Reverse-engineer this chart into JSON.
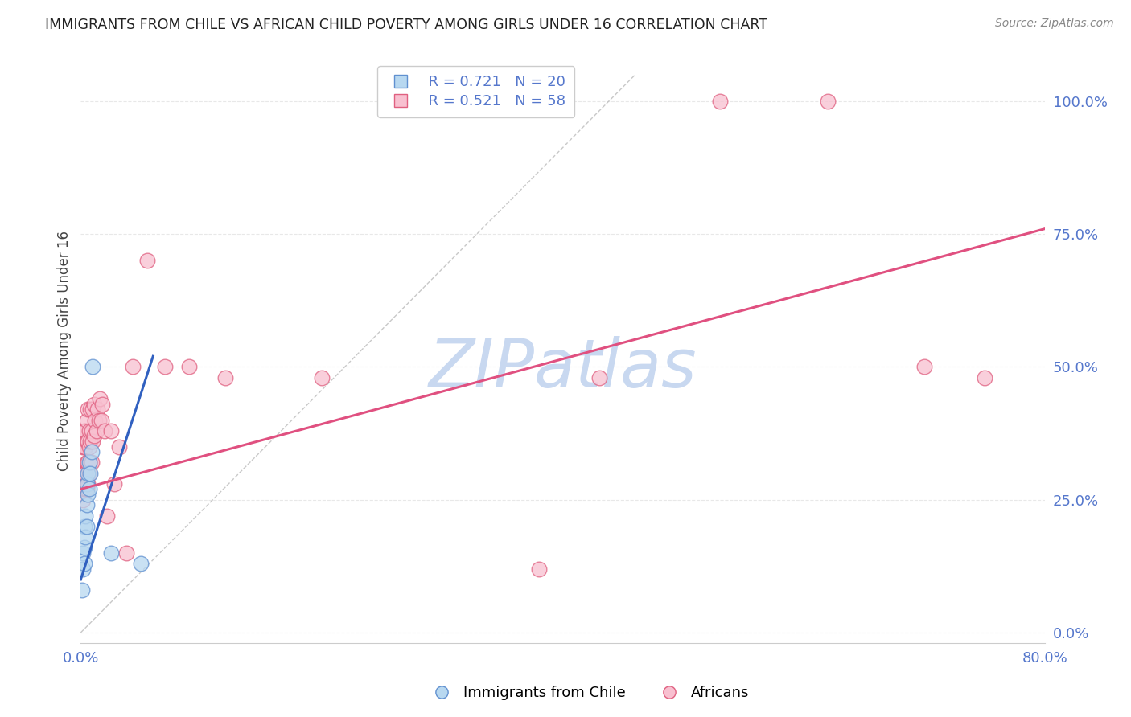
{
  "title": "IMMIGRANTS FROM CHILE VS AFRICAN CHILD POVERTY AMONG GIRLS UNDER 16 CORRELATION CHART",
  "source": "Source: ZipAtlas.com",
  "ylabel": "Child Poverty Among Girls Under 16",
  "xlim": [
    0,
    0.8
  ],
  "ylim": [
    -0.02,
    1.08
  ],
  "right_yticks": [
    0.0,
    0.25,
    0.5,
    0.75,
    1.0
  ],
  "right_yticklabels": [
    "0.0%",
    "25.0%",
    "50.0%",
    "75.0%",
    "100.0%"
  ],
  "legend_r_chile": "R = 0.721",
  "legend_n_chile": "N = 20",
  "legend_r_african": "R = 0.521",
  "legend_n_african": "N = 58",
  "chile_face_color": "#B8D8F0",
  "african_face_color": "#F8C0D0",
  "chile_edge_color": "#6090D0",
  "african_edge_color": "#E06080",
  "chile_line_color": "#3060C0",
  "african_line_color": "#E05080",
  "watermark_color": "#C8D8F0",
  "grid_color": "#E8E8E8",
  "tick_label_color": "#5577CC",
  "title_color": "#222222",
  "ylabel_color": "#444444",
  "source_color": "#888888",
  "chile_points_x": [
    0.001,
    0.002,
    0.002,
    0.003,
    0.003,
    0.003,
    0.004,
    0.004,
    0.005,
    0.005,
    0.005,
    0.006,
    0.006,
    0.007,
    0.007,
    0.008,
    0.009,
    0.01,
    0.025,
    0.05
  ],
  "chile_points_y": [
    0.08,
    0.12,
    0.15,
    0.13,
    0.16,
    0.2,
    0.18,
    0.22,
    0.2,
    0.24,
    0.28,
    0.26,
    0.3,
    0.27,
    0.32,
    0.3,
    0.34,
    0.5,
    0.15,
    0.13
  ],
  "african_points_x": [
    0.001,
    0.001,
    0.002,
    0.002,
    0.002,
    0.003,
    0.003,
    0.003,
    0.003,
    0.004,
    0.004,
    0.004,
    0.004,
    0.005,
    0.005,
    0.005,
    0.005,
    0.006,
    0.006,
    0.006,
    0.006,
    0.007,
    0.007,
    0.007,
    0.008,
    0.008,
    0.008,
    0.009,
    0.009,
    0.01,
    0.01,
    0.011,
    0.011,
    0.012,
    0.013,
    0.014,
    0.015,
    0.016,
    0.017,
    0.018,
    0.02,
    0.022,
    0.025,
    0.028,
    0.032,
    0.038,
    0.043,
    0.055,
    0.07,
    0.09,
    0.12,
    0.2,
    0.38,
    0.43,
    0.53,
    0.62,
    0.7,
    0.75
  ],
  "african_points_y": [
    0.27,
    0.3,
    0.25,
    0.3,
    0.35,
    0.27,
    0.3,
    0.35,
    0.38,
    0.27,
    0.3,
    0.35,
    0.38,
    0.27,
    0.32,
    0.36,
    0.4,
    0.28,
    0.32,
    0.36,
    0.42,
    0.3,
    0.35,
    0.38,
    0.32,
    0.36,
    0.42,
    0.32,
    0.38,
    0.36,
    0.42,
    0.37,
    0.43,
    0.4,
    0.38,
    0.42,
    0.4,
    0.44,
    0.4,
    0.43,
    0.38,
    0.22,
    0.38,
    0.28,
    0.35,
    0.15,
    0.5,
    0.7,
    0.5,
    0.5,
    0.48,
    0.48,
    0.12,
    0.48,
    1.0,
    1.0,
    0.5,
    0.48
  ],
  "chile_trend_x": [
    0.0,
    0.06
  ],
  "chile_trend_y": [
    0.1,
    0.52
  ],
  "african_trend_x": [
    0.0,
    0.8
  ],
  "african_trend_y": [
    0.27,
    0.76
  ],
  "ref_line_x": [
    0.0,
    0.46
  ],
  "ref_line_y": [
    0.0,
    1.05
  ]
}
